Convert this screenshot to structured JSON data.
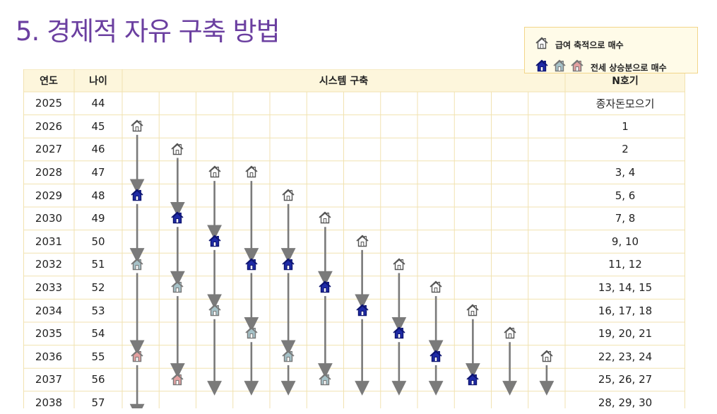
{
  "title": "5. 경제적 자유 구축 방법",
  "legend": {
    "salary_label": "급여 축적으로 매수",
    "jeonse_label": "전세 상승분으로 매수"
  },
  "colors": {
    "title": "#6b3fa0",
    "header_bg": "#fdf6dc",
    "grid_line": "#f1e2b0",
    "arrow": "#7a7a7a",
    "house_salary": "#ffffff",
    "house_navy": "#1e2aa6",
    "house_teal": "#a6c2c8",
    "house_pink": "#e3a0a0"
  },
  "table": {
    "headers": {
      "year": "연도",
      "age": "나이",
      "system": "시스템 구축",
      "n": "N호기"
    },
    "rows": [
      {
        "year": "2025",
        "age": "44",
        "n": "종자돈모으기"
      },
      {
        "year": "2026",
        "age": "45",
        "n": "1"
      },
      {
        "year": "2027",
        "age": "46",
        "n": "2"
      },
      {
        "year": "2028",
        "age": "47",
        "n": "3, 4"
      },
      {
        "year": "2029",
        "age": "48",
        "n": "5, 6"
      },
      {
        "year": "2030",
        "age": "49",
        "n": "7, 8"
      },
      {
        "year": "2031",
        "age": "50",
        "n": "9, 10"
      },
      {
        "year": "2032",
        "age": "51",
        "n": "11, 12"
      },
      {
        "year": "2033",
        "age": "52",
        "n": "13, 14, 15"
      },
      {
        "year": "2034",
        "age": "53",
        "n": "16, 17, 18"
      },
      {
        "year": "2035",
        "age": "54",
        "n": "19, 20, 21"
      },
      {
        "year": "2036",
        "age": "55",
        "n": "22, 23, 24"
      },
      {
        "year": "2037",
        "age": "56",
        "n": "25, 26, 27"
      },
      {
        "year": "2038",
        "age": "57",
        "n": "28, 29, 30"
      }
    ]
  },
  "tracks": [
    {
      "column": 1,
      "events": [
        {
          "row": 1,
          "type": "salary"
        },
        {
          "row": 4,
          "type": "navy"
        },
        {
          "row": 7,
          "type": "teal"
        },
        {
          "row": 11,
          "type": "pink"
        }
      ],
      "arrow_to_row": 13
    },
    {
      "column": 2,
      "events": [
        {
          "row": 2,
          "type": "salary"
        },
        {
          "row": 5,
          "type": "navy"
        },
        {
          "row": 8,
          "type": "teal"
        },
        {
          "row": 12,
          "type": "pink"
        }
      ],
      "arrow_to_row": 12
    },
    {
      "column": 3,
      "events": [
        {
          "row": 3,
          "type": "salary"
        },
        {
          "row": 6,
          "type": "navy"
        },
        {
          "row": 9,
          "type": "teal"
        }
      ],
      "arrow_to_row": 12
    },
    {
      "column": 4,
      "events": [
        {
          "row": 3,
          "type": "salary"
        },
        {
          "row": 7,
          "type": "navy"
        },
        {
          "row": 10,
          "type": "teal"
        }
      ],
      "arrow_to_row": 12
    },
    {
      "column": 5,
      "events": [
        {
          "row": 4,
          "type": "salary"
        },
        {
          "row": 7,
          "type": "navy"
        },
        {
          "row": 11,
          "type": "teal"
        }
      ],
      "arrow_to_row": 12
    },
    {
      "column": 6,
      "events": [
        {
          "row": 5,
          "type": "salary"
        },
        {
          "row": 8,
          "type": "navy"
        },
        {
          "row": 12,
          "type": "teal"
        }
      ],
      "arrow_to_row": 12
    },
    {
      "column": 7,
      "events": [
        {
          "row": 6,
          "type": "salary"
        },
        {
          "row": 9,
          "type": "navy"
        }
      ],
      "arrow_to_row": 12
    },
    {
      "column": 8,
      "events": [
        {
          "row": 7,
          "type": "salary"
        },
        {
          "row": 10,
          "type": "navy"
        }
      ],
      "arrow_to_row": 12
    },
    {
      "column": 9,
      "events": [
        {
          "row": 8,
          "type": "salary"
        },
        {
          "row": 11,
          "type": "navy"
        }
      ],
      "arrow_to_row": 12
    },
    {
      "column": 10,
      "events": [
        {
          "row": 9,
          "type": "salary"
        },
        {
          "row": 12,
          "type": "navy"
        }
      ],
      "arrow_to_row": 12
    },
    {
      "column": 11,
      "events": [
        {
          "row": 10,
          "type": "salary"
        }
      ],
      "arrow_to_row": 12
    },
    {
      "column": 12,
      "events": [
        {
          "row": 11,
          "type": "salary"
        }
      ],
      "arrow_to_row": 12
    }
  ]
}
